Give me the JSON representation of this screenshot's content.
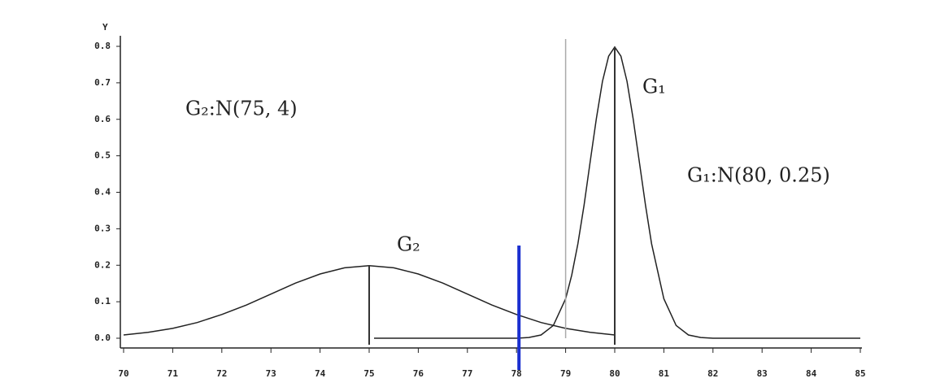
{
  "chart_data": {
    "type": "line",
    "ylabel": "Y",
    "xlim": [
      70,
      85
    ],
    "xticks": [
      70,
      71,
      72,
      73,
      74,
      75,
      76,
      77,
      78,
      79,
      80,
      81,
      82,
      83,
      84,
      85
    ],
    "ylim": [
      0,
      0.8
    ],
    "yticks": [
      {
        "value": 0,
        "label": "0.0"
      },
      0.1,
      0.2,
      0.3,
      0.4,
      0.5,
      0.6,
      0.7,
      0.8
    ],
    "series": [
      {
        "name": "G₂",
        "color": "#222222",
        "x": [
          70,
          70.5,
          71,
          71.5,
          72,
          72.5,
          73,
          73.5,
          74,
          74.5,
          75,
          75.5,
          76,
          76.5,
          77,
          77.5,
          78,
          78.5,
          79,
          79.5,
          80
        ],
        "values": [
          0.009,
          0.016,
          0.027,
          0.043,
          0.065,
          0.091,
          0.121,
          0.151,
          0.176,
          0.193,
          0.199,
          0.193,
          0.176,
          0.151,
          0.121,
          0.091,
          0.065,
          0.043,
          0.027,
          0.016,
          0.009
        ]
      },
      {
        "name": "G₁",
        "color": "#222222",
        "x": [
          75.1,
          78,
          78.25,
          78.5,
          78.75,
          79,
          79.125,
          79.25,
          79.375,
          79.5,
          79.625,
          79.75,
          79.875,
          80,
          80.125,
          80.25,
          80.375,
          80.5,
          80.625,
          80.75,
          81,
          81.25,
          81.5,
          81.75,
          82,
          85
        ],
        "values": [
          0,
          0,
          0.002,
          0.009,
          0.035,
          0.108,
          0.173,
          0.259,
          0.365,
          0.484,
          0.602,
          0.704,
          0.773,
          0.798,
          0.773,
          0.704,
          0.602,
          0.484,
          0.365,
          0.259,
          0.108,
          0.035,
          0.009,
          0.002,
          0,
          0
        ]
      }
    ],
    "stems": [
      {
        "x": 75,
        "top": 0.199
      },
      {
        "x": 80,
        "top": 0.798
      }
    ],
    "reference_lines": [
      {
        "x": 79,
        "y": [
          0,
          0.82
        ],
        "color": "#aaaaaa",
        "width": 1.5
      },
      {
        "x": 78.05,
        "y": [
          -0.087,
          0.254
        ],
        "color": "#1a2fd0",
        "width": 4
      }
    ],
    "annotations": [
      "G₂:N(75, 4)",
      "G₁",
      "G₁:N(80, 0.25)",
      "G₂"
    ]
  }
}
